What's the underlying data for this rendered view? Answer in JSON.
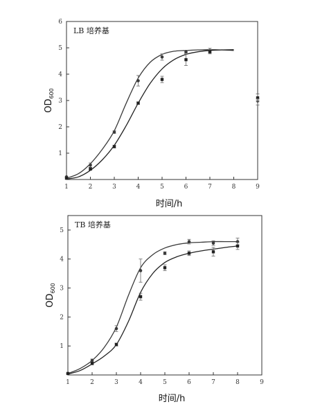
{
  "chart_data": [
    {
      "type": "scatter",
      "title": "LB 培养基",
      "xlabel": "时间/h",
      "ylabel": "OD600",
      "ylabel_main": "OD",
      "ylabel_sub": "600",
      "xlim": [
        1,
        9
      ],
      "ylim": [
        0,
        6
      ],
      "x_ticks": [
        "1",
        "2",
        "3",
        "4",
        "5",
        "6",
        "7",
        "8",
        "9"
      ],
      "y_ticks": [
        "1",
        "2",
        "3",
        "4",
        "5",
        "6"
      ],
      "grid": false,
      "series": [
        {
          "marker": "circle",
          "x": [
            1,
            2,
            3,
            4,
            5,
            6,
            7
          ],
          "y": [
            0.1,
            0.55,
            1.8,
            3.75,
            4.65,
            4.85,
            4.9
          ],
          "err": [
            0,
            0.08,
            0.05,
            0.2,
            0.12,
            0.05,
            0.08
          ],
          "fit": [
            [
              1,
              0.05
            ],
            [
              1.5,
              0.22
            ],
            [
              2,
              0.6
            ],
            [
              2.5,
              1.15
            ],
            [
              3,
              1.85
            ],
            [
              3.5,
              2.9
            ],
            [
              4,
              3.85
            ],
            [
              4.5,
              4.45
            ],
            [
              5,
              4.75
            ],
            [
              5.5,
              4.87
            ],
            [
              6,
              4.9
            ],
            [
              6.5,
              4.92
            ],
            [
              7,
              4.93
            ],
            [
              7.5,
              4.92
            ],
            [
              8,
              4.9
            ]
          ]
        },
        {
          "marker": "square",
          "x": [
            1,
            2,
            3,
            4,
            5,
            6,
            7,
            9
          ],
          "y": [
            0.05,
            0.4,
            1.25,
            2.9,
            3.8,
            4.55,
            4.85,
            3.1
          ],
          "err": [
            0,
            0.05,
            0.05,
            0.05,
            0.12,
            0.22,
            0.08,
            0.15
          ],
          "fit": [
            [
              1,
              0.02
            ],
            [
              1.5,
              0.1
            ],
            [
              2,
              0.35
            ],
            [
              2.5,
              0.75
            ],
            [
              3,
              1.3
            ],
            [
              3.5,
              2.05
            ],
            [
              4,
              2.9
            ],
            [
              4.5,
              3.65
            ],
            [
              5,
              4.2
            ],
            [
              5.5,
              4.55
            ],
            [
              6,
              4.75
            ],
            [
              6.5,
              4.85
            ],
            [
              7,
              4.9
            ],
            [
              7.5,
              4.92
            ],
            [
              8,
              4.93
            ]
          ]
        },
        {
          "marker": "triangle",
          "x": [
            9
          ],
          "y": [
            2.95
          ],
          "err": [
            0.12
          ],
          "fit": []
        }
      ]
    },
    {
      "type": "scatter",
      "title": "TB 培养基",
      "xlabel": "时间/h",
      "ylabel": "OD600",
      "ylabel_main": "OD",
      "ylabel_sub": "600",
      "xlim": [
        1,
        9
      ],
      "ylim": [
        0,
        5.5
      ],
      "x_ticks": [
        "1",
        "2",
        "3",
        "4",
        "5",
        "6",
        "7",
        "8",
        "9"
      ],
      "y_ticks": [
        "1",
        "2",
        "3",
        "4",
        "5"
      ],
      "grid": false,
      "series": [
        {
          "marker": "circle",
          "x": [
            1,
            2,
            3,
            4,
            5,
            6,
            7,
            8
          ],
          "y": [
            0.05,
            0.5,
            1.6,
            3.6,
            4.2,
            4.6,
            4.55,
            4.6
          ],
          "err": [
            0,
            0.05,
            0.1,
            0.4,
            0.05,
            0.08,
            0.08,
            0.12
          ],
          "fit": [
            [
              1,
              0.05
            ],
            [
              1.5,
              0.22
            ],
            [
              2,
              0.5
            ],
            [
              2.5,
              0.95
            ],
            [
              3,
              1.65
            ],
            [
              3.5,
              2.75
            ],
            [
              4,
              3.7
            ],
            [
              4.5,
              4.15
            ],
            [
              5,
              4.38
            ],
            [
              5.5,
              4.5
            ],
            [
              6,
              4.56
            ],
            [
              6.5,
              4.58
            ],
            [
              7,
              4.6
            ],
            [
              7.5,
              4.6
            ],
            [
              8,
              4.6
            ]
          ]
        },
        {
          "marker": "square",
          "x": [
            1,
            2,
            3,
            4,
            5,
            6,
            7,
            8
          ],
          "y": [
            0.05,
            0.4,
            1.05,
            2.7,
            3.7,
            4.2,
            4.25,
            4.45
          ],
          "err": [
            0,
            0.05,
            0.05,
            0.12,
            0.1,
            0.08,
            0.15,
            0.12
          ],
          "fit": [
            [
              1,
              0.03
            ],
            [
              1.5,
              0.15
            ],
            [
              2,
              0.38
            ],
            [
              2.5,
              0.65
            ],
            [
              3,
              1.05
            ],
            [
              3.5,
              1.85
            ],
            [
              4,
              2.85
            ],
            [
              4.5,
              3.5
            ],
            [
              5,
              3.88
            ],
            [
              5.5,
              4.08
            ],
            [
              6,
              4.2
            ],
            [
              6.5,
              4.28
            ],
            [
              7,
              4.34
            ],
            [
              7.5,
              4.4
            ],
            [
              8,
              4.45
            ]
          ]
        }
      ]
    }
  ]
}
